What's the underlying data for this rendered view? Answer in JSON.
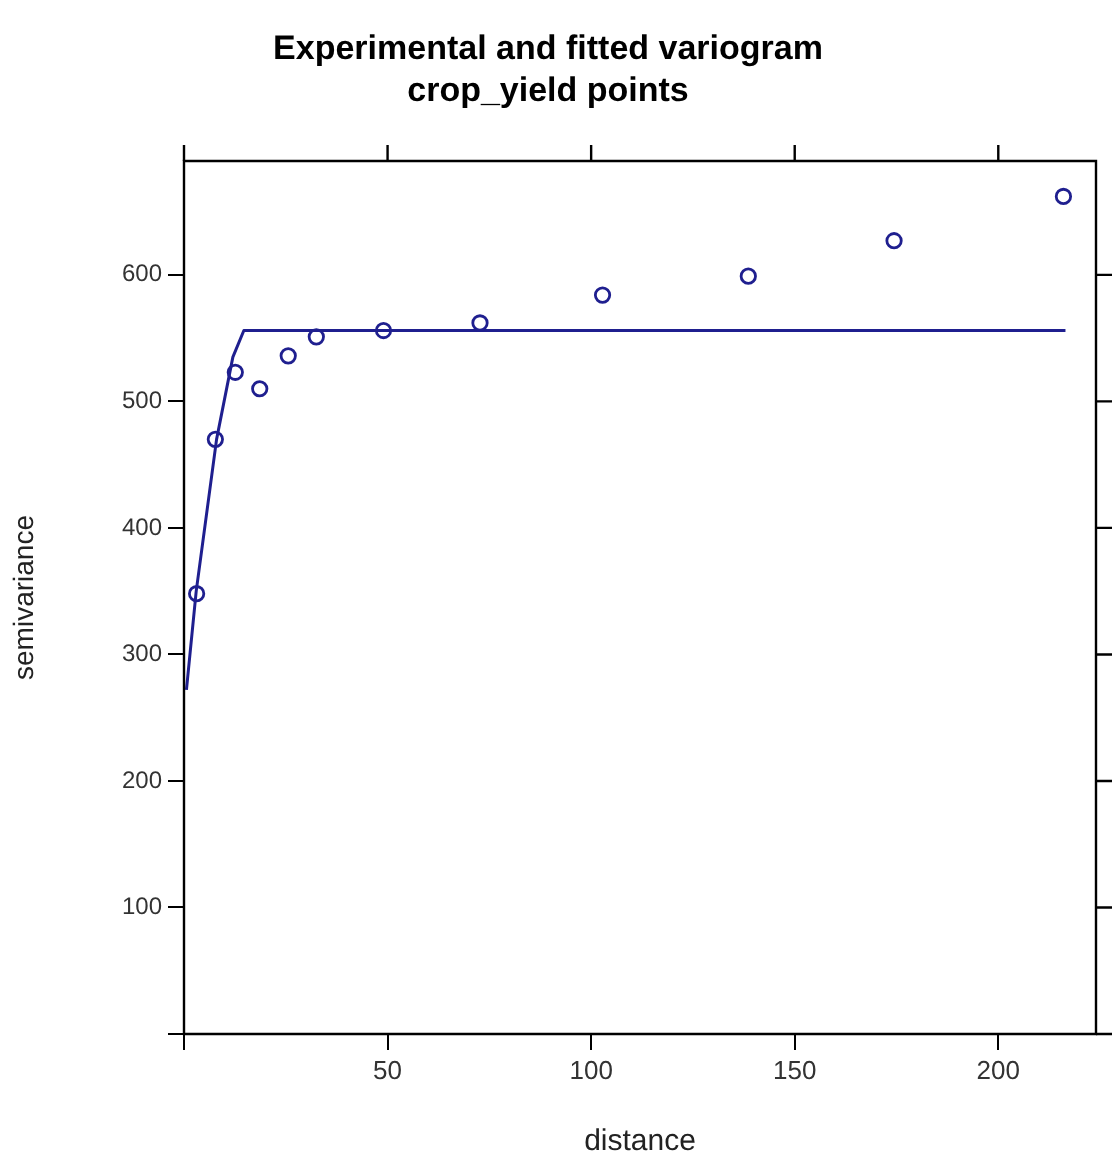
{
  "chart_data": {
    "type": "scatter",
    "title": "Experimental and fitted variogram",
    "subtitle": "crop_yield points",
    "xlabel": "distance",
    "ylabel": "semivariance",
    "xlim": [
      0,
      224
    ],
    "ylim": [
      0,
      690
    ],
    "xticks": [
      {
        "value": 0,
        "label": null
      },
      50,
      100,
      150,
      200
    ],
    "yticks": [
      {
        "value": 0,
        "label": null
      },
      100,
      200,
      300,
      400,
      500,
      600
    ],
    "grid": false,
    "legend": false,
    "series": [
      {
        "marker": "circle",
        "color": "#1f1f8f",
        "x": [
          3.1,
          7.7,
          12.6,
          18.6,
          25.6,
          32.5,
          49,
          72.7,
          102.8,
          138.6,
          174.4,
          216
        ],
        "values": [
          348,
          470,
          523,
          510,
          536,
          551,
          556,
          562,
          584,
          599,
          627,
          662
        ]
      },
      {
        "type": "line",
        "marker": "none",
        "color": "#1f1f8f",
        "x": [
          0.6,
          3,
          8,
          12,
          14.7,
          216.5
        ],
        "values": [
          272,
          350,
          470,
          535,
          556,
          556
        ]
      }
    ]
  }
}
